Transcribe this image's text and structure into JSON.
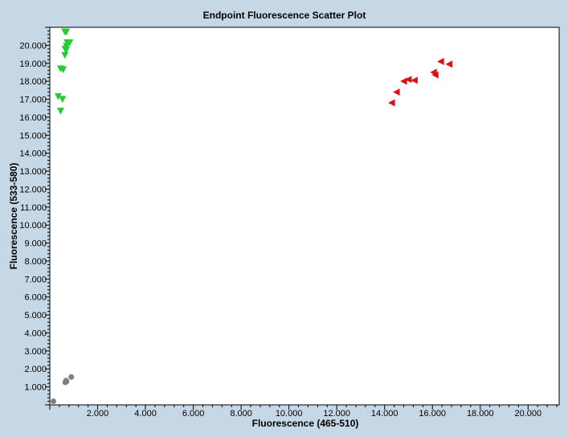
{
  "chart_data": {
    "type": "scatter",
    "title": "Endpoint Fluorescence Scatter Plot",
    "xlabel": "Fluorescence (465-510)",
    "ylabel": "Fluorescence (533-580)",
    "xlim": [
      0,
      21300
    ],
    "ylim": [
      0,
      21000
    ],
    "grid": false,
    "legend": "none",
    "x_ticks": [
      "2.000",
      "4.000",
      "6.000",
      "8.000",
      "10.000",
      "12.000",
      "14.000",
      "16.000",
      "18.000",
      "20.000"
    ],
    "x_tick_values": [
      2000,
      4000,
      6000,
      8000,
      10000,
      12000,
      14000,
      16000,
      18000,
      20000
    ],
    "y_ticks": [
      "1.000",
      "2.000",
      "3.000",
      "4.000",
      "5.000",
      "6.000",
      "7.000",
      "8.000",
      "9.000",
      "10.000",
      "11.000",
      "12.000",
      "13.000",
      "14.000",
      "15.000",
      "16.000",
      "17.000",
      "18.000",
      "19.000",
      "20.000"
    ],
    "y_tick_values": [
      1000,
      2000,
      3000,
      4000,
      5000,
      6000,
      7000,
      8000,
      9000,
      10000,
      11000,
      12000,
      13000,
      14000,
      15000,
      16000,
      17000,
      18000,
      19000,
      20000
    ],
    "series": [
      {
        "marker": "triangle-down",
        "color": "#22cc33",
        "points": [
          [
            630,
            20750
          ],
          [
            690,
            20750
          ],
          [
            730,
            20150
          ],
          [
            830,
            20150
          ],
          [
            700,
            19950
          ],
          [
            640,
            19800
          ],
          [
            690,
            19750
          ],
          [
            630,
            19450
          ],
          [
            450,
            18700
          ],
          [
            560,
            18650
          ],
          [
            350,
            17150
          ],
          [
            530,
            17000
          ],
          [
            450,
            16350
          ]
        ]
      },
      {
        "marker": "triangle-left",
        "color": "#dd1111",
        "points": [
          [
            16350,
            19100
          ],
          [
            16700,
            18950
          ],
          [
            16050,
            18500
          ],
          [
            16120,
            18350
          ],
          [
            15000,
            18100
          ],
          [
            15250,
            18050
          ],
          [
            14800,
            18000
          ],
          [
            14500,
            17400
          ],
          [
            14300,
            16800
          ]
        ]
      },
      {
        "marker": "circle",
        "color": "#808080",
        "points": [
          [
            150,
            200
          ],
          [
            700,
            1300
          ],
          [
            680,
            1350
          ],
          [
            900,
            1550
          ],
          [
            650,
            1250
          ]
        ]
      }
    ]
  }
}
